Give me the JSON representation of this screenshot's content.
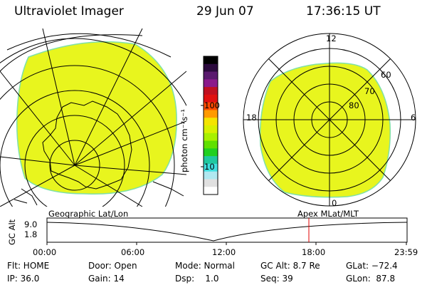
{
  "header": {
    "title": "Ultraviolet Imager",
    "date": "29 Jun 07",
    "time": "17:36:15 UT"
  },
  "colorbar": {
    "unit_label": "photon cm⁻²s⁻¹",
    "tick_100": "100",
    "tick_10": "10",
    "colors": [
      "#000000",
      "#2b0a3d",
      "#5a1a6e",
      "#8b1a8b",
      "#c01020",
      "#e01010",
      "#ff4a00",
      "#ff9a00",
      "#f4e400",
      "#d8f000",
      "#a8f000",
      "#60e000",
      "#20d020",
      "#20c8a0",
      "#40e0e0",
      "#b0e8f0",
      "#e0e0e0",
      "#ffffff"
    ]
  },
  "geo_map": {
    "label": "Geographic Lat/Lon",
    "fill_color": "#e8f51e"
  },
  "polar_map": {
    "label": "Apex MLat/MLT",
    "mlt_top": "12",
    "mlt_left": "18",
    "mlt_right": "6",
    "mlt_bottom": "0",
    "lat_60": "60",
    "lat_70": "70",
    "lat_80": "80",
    "fill_color": "#e8f51e"
  },
  "timeline": {
    "ylabel": "GC Alt",
    "y_top": "9.0",
    "y_bottom": "1.8",
    "ticks": [
      "00:00",
      "06:00",
      "12:00",
      "18:00",
      "23:59"
    ],
    "current_marker_color": "#e00000"
  },
  "status": {
    "flt": "Flt: HOME",
    "ip": "IP: 36.0",
    "door": "Door: Open",
    "gain": "Gain: 14",
    "mode": "Mode: Normal",
    "dsp": "Dsp:    1.0",
    "gc_alt": "GC Alt: 8.7 Re",
    "seq": "Seq: 39",
    "glat": "GLat: −72.4",
    "glon": "GLon:  87.8"
  }
}
